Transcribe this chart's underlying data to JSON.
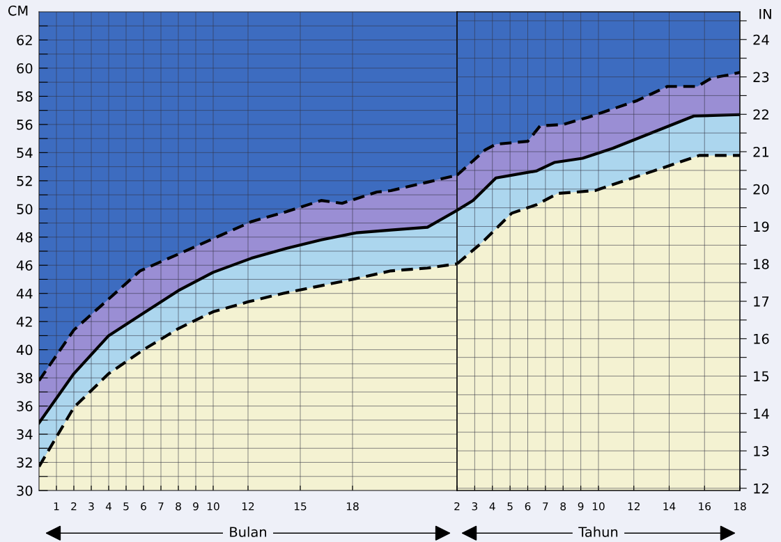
{
  "chart_data": [
    {
      "type": "area",
      "ylabel": "CM",
      "xlabel": "Bulan",
      "grid": true,
      "tick_labels": "xy",
      "bands": [
        {
          "axis": "y",
          "from": 30,
          "to": 64,
          "color": "#3d6cc0"
        }
      ],
      "xlim": [
        0,
        24
      ],
      "xticks": [
        1,
        2,
        3,
        4,
        5,
        6,
        7,
        8,
        9,
        10,
        12,
        15,
        18
      ],
      "ylim": [
        30,
        64
      ],
      "yticks": [
        30,
        {
          "value": 31,
          "label": null
        },
        32,
        {
          "value": 33,
          "label": null
        },
        34,
        {
          "value": 35,
          "label": null
        },
        36,
        {
          "value": 37,
          "label": null
        },
        38,
        {
          "value": 39,
          "label": null
        },
        40,
        {
          "value": 41,
          "label": null
        },
        42,
        {
          "value": 43,
          "label": null
        },
        44,
        {
          "value": 45,
          "label": null
        },
        46,
        {
          "value": 47,
          "label": null
        },
        48,
        {
          "value": 49,
          "label": null
        },
        50,
        {
          "value": 51,
          "label": null
        },
        52,
        {
          "value": 53,
          "label": null
        },
        54,
        {
          "value": 55,
          "label": null
        },
        56,
        {
          "value": 57,
          "label": null
        },
        58,
        {
          "value": 59,
          "label": null
        },
        60,
        {
          "value": 61,
          "label": null
        },
        62,
        {
          "value": 63,
          "label": null
        }
      ],
      "series": [
        {
          "color": "#9a8ed4",
          "line_style": "dashed",
          "x": [
            0,
            2,
            4,
            5.8,
            8.2,
            10.2,
            12.2,
            14.2,
            16.2,
            17.4,
            19.4,
            20.2,
            22.3,
            24
          ],
          "values": [
            37.8,
            41.4,
            43.6,
            45.6,
            46.9,
            48.0,
            49.1,
            49.8,
            50.6,
            50.4,
            51.2,
            51.3,
            51.9,
            52.4
          ]
        },
        {
          "color": "#acd6ee",
          "line_style": "solid",
          "x": [
            0,
            2,
            4,
            6,
            8,
            10,
            12.2,
            14.2,
            16.2,
            18.2,
            20.2,
            22.3,
            24
          ],
          "values": [
            34.8,
            38.3,
            41.0,
            42.6,
            44.2,
            45.5,
            46.5,
            47.2,
            47.8,
            48.3,
            48.5,
            48.7,
            49.9
          ]
        },
        {
          "color": "#f4f2d2",
          "line_style": "dashed",
          "x": [
            0,
            1,
            2,
            4,
            6,
            8,
            10,
            12,
            14,
            16,
            18,
            20.2,
            22.3,
            24
          ],
          "values": [
            31.7,
            33.8,
            35.9,
            38.3,
            40.0,
            41.5,
            42.7,
            43.4,
            44.0,
            44.5,
            45.0,
            45.6,
            45.8,
            46.1
          ]
        }
      ]
    },
    {
      "type": "area",
      "xlabel": "Tahun",
      "y2label": "IN",
      "grid": true,
      "tick_labels": [
        "x",
        "y2"
      ],
      "bands": [
        {
          "axis": "y",
          "from": 30,
          "to": 64,
          "color": "#3d6cc0"
        }
      ],
      "xlim": [
        2,
        18
      ],
      "xticks": [
        2,
        3,
        4,
        5,
        6,
        7,
        8,
        9,
        10,
        12,
        14,
        16,
        18
      ],
      "ylim": [
        30,
        64
      ],
      "y2lim": [
        11.94,
        24.74
      ],
      "y2ticks": [
        12,
        {
          "value": 12.5,
          "label": null
        },
        13,
        {
          "value": 13.5,
          "label": null
        },
        14,
        {
          "value": 14.5,
          "label": null
        },
        15,
        {
          "value": 15.5,
          "label": null
        },
        16,
        {
          "value": 16.5,
          "label": null
        },
        17,
        {
          "value": 17.5,
          "label": null
        },
        18,
        {
          "value": 18.5,
          "label": null
        },
        19,
        {
          "value": 19.5,
          "label": null
        },
        20,
        {
          "value": 20.5,
          "label": null
        },
        21,
        {
          "value": 21.5,
          "label": null
        },
        22,
        {
          "value": 22.5,
          "label": null
        },
        23,
        {
          "value": 23.5,
          "label": null
        },
        24,
        {
          "value": 24.5,
          "label": null
        }
      ],
      "series": [
        {
          "color": "#9a8ed4",
          "line_style": "dashed",
          "x": [
            2,
            3.6,
            4.2,
            6.0,
            6.7,
            8.0,
            9.4,
            12.2,
            13.9,
            15.6,
            16.4,
            17.3,
            18
          ],
          "values": [
            52.4,
            54.2,
            54.6,
            54.8,
            55.9,
            56.0,
            56.5,
            57.7,
            58.7,
            58.7,
            59.3,
            59.5,
            59.7
          ]
        },
        {
          "color": "#acd6ee",
          "line_style": "solid",
          "x": [
            2,
            2.9,
            4.2,
            6.5,
            7.5,
            9.1,
            10.8,
            15.4,
            18
          ],
          "values": [
            49.9,
            50.6,
            52.2,
            52.7,
            53.3,
            53.6,
            54.3,
            56.6,
            56.7
          ]
        },
        {
          "color": "#f4f2d2",
          "line_style": "dashed",
          "x": [
            2,
            3.4,
            5.1,
            6.5,
            7.7,
            9.8,
            13.6,
            15.7,
            18
          ],
          "values": [
            46.1,
            47.6,
            49.7,
            50.3,
            51.1,
            51.3,
            52.9,
            53.8,
            53.8
          ]
        }
      ]
    }
  ]
}
